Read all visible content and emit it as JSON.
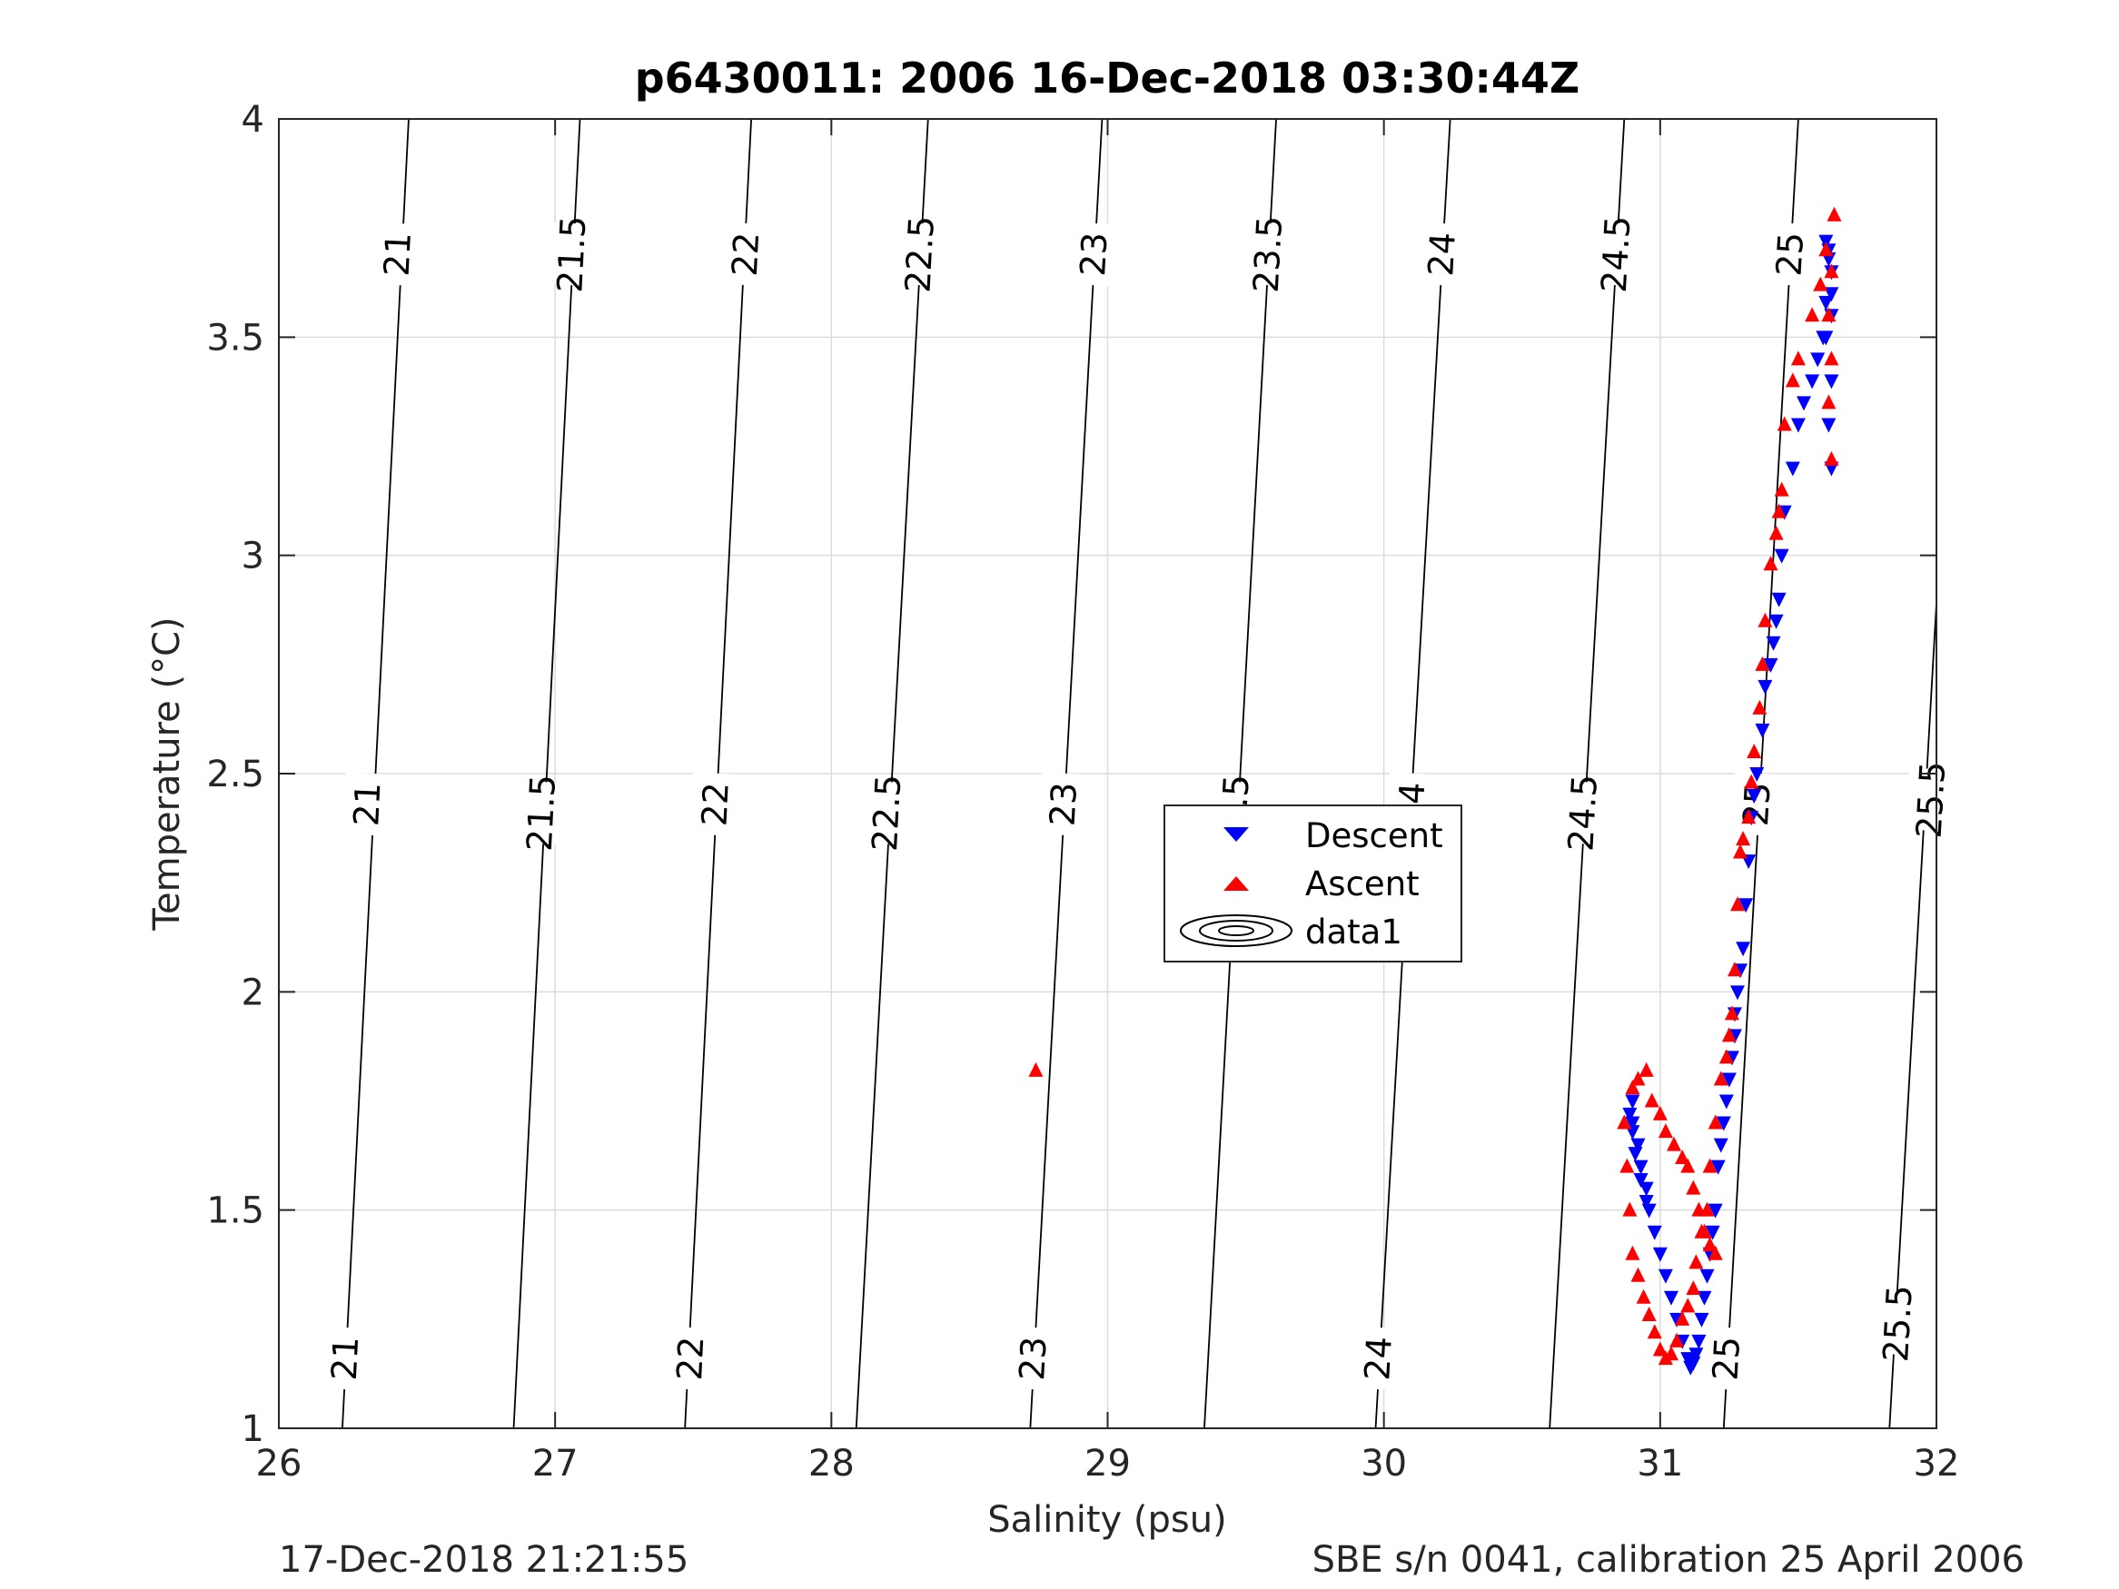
{
  "chart_data": {
    "type": "scatter",
    "title": "p6430011:  2006 16-Dec-2018 03:30:44Z",
    "xlabel": "Salinity (psu)",
    "ylabel": "Temperature (°C)",
    "xlim": [
      26,
      32
    ],
    "ylim": [
      1,
      4
    ],
    "xticks": [
      26,
      27,
      28,
      29,
      30,
      31,
      32
    ],
    "yticks": [
      1,
      1.5,
      2,
      2.5,
      3,
      3.5,
      4
    ],
    "xtick_labels": [
      "26",
      "27",
      "28",
      "29",
      "30",
      "31",
      "32"
    ],
    "ytick_labels": [
      "1",
      "1.5",
      "2",
      "2.5",
      "3",
      "3.5",
      "4"
    ],
    "grid": true,
    "legend": {
      "placement": "center",
      "entries": [
        "Descent",
        "Ascent",
        "data1"
      ]
    },
    "colors": {
      "descent": "#0000ff",
      "ascent": "#ff0000",
      "contour": "#000000",
      "grid": "#dcdcdc"
    },
    "contours": [
      {
        "level": 21,
        "label": "21",
        "points": [
          [
            26.23,
            1.0
          ],
          [
            26.47,
            4.0
          ]
        ],
        "label_positions": [
          [
            26.24,
            1.16
          ],
          [
            26.32,
            2.43
          ],
          [
            26.43,
            3.69
          ]
        ]
      },
      {
        "level": 21.5,
        "label": "21.5",
        "points": [
          [
            26.85,
            1.0
          ],
          [
            27.09,
            4.0
          ]
        ],
        "label_positions": [
          [
            26.95,
            2.41
          ],
          [
            27.06,
            3.69
          ]
        ]
      },
      {
        "level": 22,
        "label": "22",
        "points": [
          [
            27.47,
            1.0
          ],
          [
            27.71,
            4.0
          ]
        ],
        "label_positions": [
          [
            27.49,
            1.16
          ],
          [
            27.58,
            2.43
          ],
          [
            27.69,
            3.69
          ]
        ]
      },
      {
        "level": 22.5,
        "label": "22.5",
        "points": [
          [
            28.09,
            1.0
          ],
          [
            28.35,
            4.0
          ]
        ],
        "label_positions": [
          [
            28.2,
            2.41
          ],
          [
            28.32,
            3.69
          ]
        ]
      },
      {
        "level": 23,
        "label": "23",
        "points": [
          [
            28.72,
            1.0
          ],
          [
            28.98,
            4.0
          ]
        ],
        "label_positions": [
          [
            28.73,
            1.16
          ],
          [
            28.84,
            2.43
          ],
          [
            28.95,
            3.69
          ]
        ]
      },
      {
        "level": 23.5,
        "label": "23.5",
        "points": [
          [
            29.35,
            1.0
          ],
          [
            29.61,
            4.0
          ]
        ],
        "label_positions": [
          [
            29.46,
            2.41
          ],
          [
            29.58,
            3.69
          ]
        ]
      },
      {
        "level": 24,
        "label": "24",
        "points": [
          [
            29.97,
            1.0
          ],
          [
            30.24,
            4.0
          ]
        ],
        "label_positions": [
          [
            29.98,
            1.16
          ],
          [
            30.1,
            2.43
          ],
          [
            30.21,
            3.69
          ]
        ]
      },
      {
        "level": 24.5,
        "label": "24.5",
        "points": [
          [
            30.6,
            1.0
          ],
          [
            30.87,
            4.0
          ]
        ],
        "label_positions": [
          [
            30.72,
            2.41
          ],
          [
            30.84,
            3.69
          ]
        ]
      },
      {
        "level": 25,
        "label": "25",
        "points": [
          [
            31.23,
            1.0
          ],
          [
            31.5,
            4.0
          ]
        ],
        "label_positions": [
          [
            31.24,
            1.16
          ],
          [
            31.35,
            2.43
          ],
          [
            31.47,
            3.69
          ]
        ]
      },
      {
        "level": 25.5,
        "label": "25.5",
        "points": [
          [
            31.83,
            1.0
          ],
          [
            32.0,
            2.89
          ]
        ],
        "label_positions": [
          [
            31.86,
            1.24
          ],
          [
            31.98,
            2.44
          ]
        ]
      }
    ],
    "series": [
      {
        "name": "Descent",
        "marker": "triangle-down",
        "x": [
          31.62,
          31.61,
          31.62,
          31.6,
          31.62,
          31.61,
          31.62,
          31.6,
          31.61,
          31.62,
          31.6,
          31.59,
          31.57,
          31.55,
          31.52,
          31.5,
          31.48,
          31.45,
          31.44,
          31.43,
          31.42,
          31.41,
          31.4,
          31.38,
          31.37,
          31.35,
          31.34,
          31.33,
          31.32,
          31.31,
          31.3,
          31.29,
          31.28,
          31.27,
          31.27,
          31.26,
          31.25,
          31.24,
          31.23,
          31.22,
          31.21,
          31.2,
          31.19,
          31.18,
          31.17,
          31.16,
          31.15,
          31.14,
          31.13,
          31.12,
          31.11,
          31.1,
          31.08,
          31.06,
          31.04,
          31.02,
          31.0,
          30.98,
          30.96,
          30.95,
          30.93,
          30.92,
          30.9,
          30.9,
          30.89,
          30.9,
          30.91,
          30.93,
          30.95
        ],
        "y": [
          3.2,
          3.3,
          3.4,
          3.5,
          3.6,
          3.7,
          3.65,
          3.72,
          3.68,
          3.55,
          3.58,
          3.5,
          3.45,
          3.4,
          3.35,
          3.3,
          3.2,
          3.1,
          3.0,
          2.9,
          2.85,
          2.8,
          2.75,
          2.7,
          2.6,
          2.5,
          2.45,
          2.4,
          2.3,
          2.2,
          2.1,
          2.05,
          2.0,
          1.95,
          1.9,
          1.85,
          1.8,
          1.75,
          1.7,
          1.65,
          1.6,
          1.5,
          1.45,
          1.4,
          1.35,
          1.3,
          1.25,
          1.2,
          1.17,
          1.15,
          1.14,
          1.16,
          1.2,
          1.25,
          1.3,
          1.35,
          1.4,
          1.45,
          1.5,
          1.55,
          1.6,
          1.65,
          1.7,
          1.75,
          1.72,
          1.68,
          1.63,
          1.57,
          1.52
        ]
      },
      {
        "name": "Ascent",
        "marker": "triangle-up",
        "x": [
          31.62,
          31.61,
          31.62,
          31.61,
          31.62,
          31.6,
          31.63,
          31.58,
          31.55,
          31.5,
          31.48,
          31.45,
          31.44,
          31.43,
          31.42,
          31.4,
          31.38,
          31.37,
          31.36,
          31.34,
          31.33,
          31.32,
          31.3,
          31.29,
          31.28,
          31.27,
          31.26,
          31.25,
          31.24,
          31.22,
          31.2,
          31.18,
          31.17,
          31.15,
          31.13,
          31.12,
          31.1,
          31.08,
          31.06,
          31.04,
          31.02,
          31.0,
          30.98,
          30.96,
          30.94,
          30.92,
          30.9,
          30.89,
          30.88,
          30.87,
          30.9,
          30.92,
          30.95,
          30.97,
          31.0,
          31.02,
          31.05,
          31.08,
          31.1,
          31.12,
          31.14,
          31.16,
          31.18,
          31.2,
          28.74
        ],
        "y": [
          3.22,
          3.35,
          3.45,
          3.55,
          3.65,
          3.7,
          3.78,
          3.62,
          3.55,
          3.45,
          3.4,
          3.3,
          3.15,
          3.1,
          3.05,
          2.98,
          2.85,
          2.75,
          2.65,
          2.55,
          2.48,
          2.4,
          2.35,
          2.32,
          2.2,
          2.05,
          1.95,
          1.9,
          1.85,
          1.8,
          1.7,
          1.6,
          1.5,
          1.45,
          1.38,
          1.32,
          1.28,
          1.25,
          1.2,
          1.17,
          1.16,
          1.18,
          1.22,
          1.26,
          1.3,
          1.35,
          1.4,
          1.5,
          1.6,
          1.7,
          1.78,
          1.8,
          1.82,
          1.75,
          1.72,
          1.68,
          1.65,
          1.62,
          1.6,
          1.55,
          1.5,
          1.45,
          1.42,
          1.4,
          1.82
        ]
      }
    ]
  },
  "footer": {
    "left": "17-Dec-2018 21:21:55",
    "right": "SBE s/n 0041, calibration 25 April 2006"
  }
}
